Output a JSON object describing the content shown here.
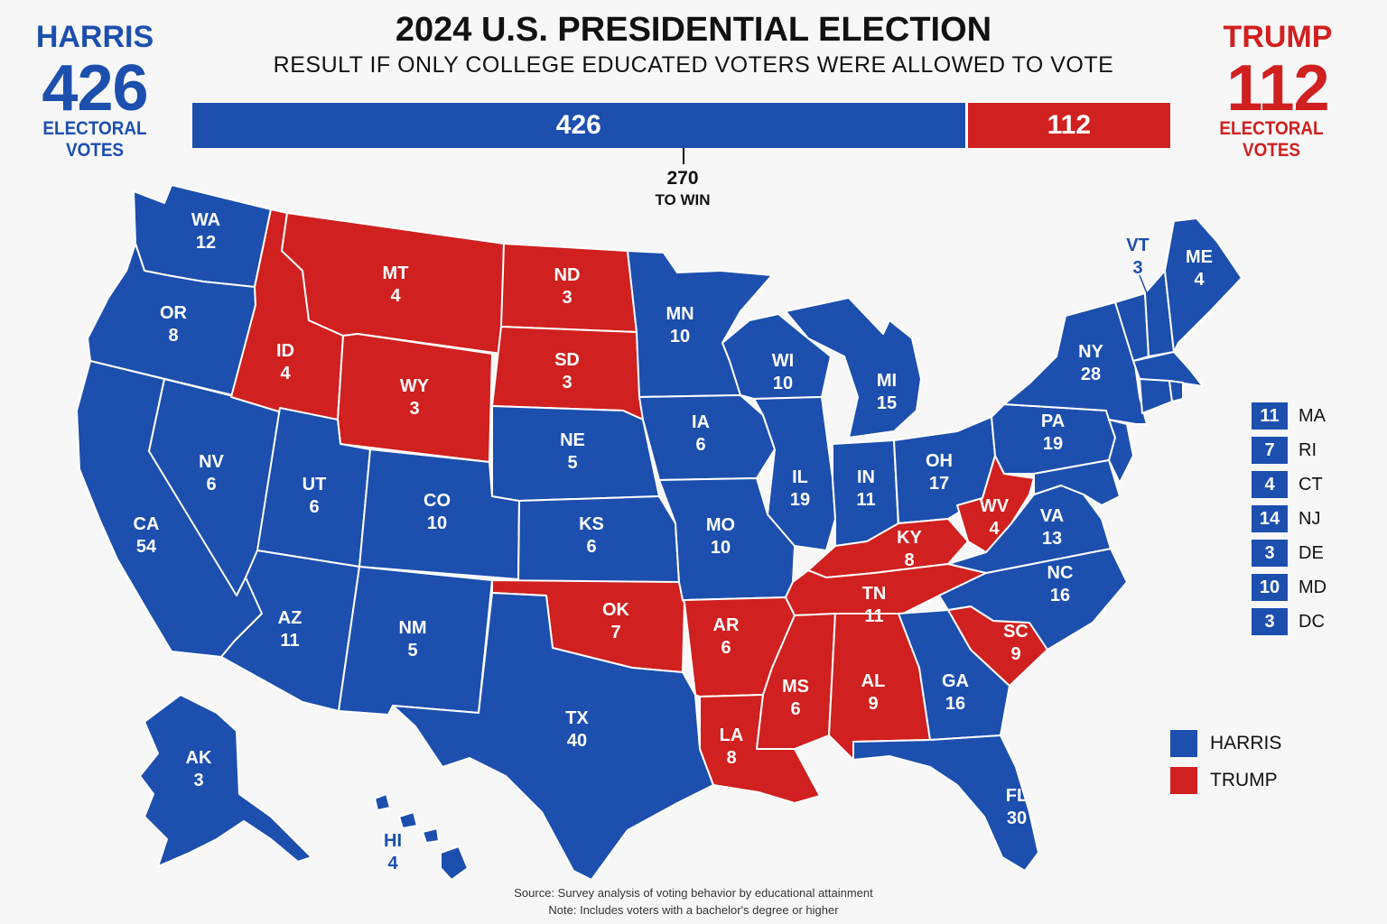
{
  "header": {
    "title": "2024 U.S. PRESIDENTIAL ELECTION",
    "subtitle": "RESULT IF ONLY COLLEGE EDUCATED VOTERS WERE ALLOWED TO VOTE"
  },
  "harris": {
    "name": "HARRIS",
    "votes": "426",
    "label": "ELECTORAL VOTES",
    "color": "#1c4fae"
  },
  "trump": {
    "name": "TRUMP",
    "votes": "112",
    "label": "ELECTORAL VOTES",
    "color": "#d0201f"
  },
  "bar": {
    "harris": "426",
    "trump": "112",
    "threshold": "270",
    "threshold_label": "TO WIN"
  },
  "states": {
    "WA": {
      "code": "WA",
      "ev": "12",
      "winner": "harris"
    },
    "OR": {
      "code": "OR",
      "ev": "8",
      "winner": "harris"
    },
    "CA": {
      "code": "CA",
      "ev": "54",
      "winner": "harris"
    },
    "NV": {
      "code": "NV",
      "ev": "6",
      "winner": "harris"
    },
    "ID": {
      "code": "ID",
      "ev": "4",
      "winner": "trump"
    },
    "MT": {
      "code": "MT",
      "ev": "4",
      "winner": "trump"
    },
    "WY": {
      "code": "WY",
      "ev": "3",
      "winner": "trump"
    },
    "UT": {
      "code": "UT",
      "ev": "6",
      "winner": "harris"
    },
    "AZ": {
      "code": "AZ",
      "ev": "11",
      "winner": "harris"
    },
    "CO": {
      "code": "CO",
      "ev": "10",
      "winner": "harris"
    },
    "NM": {
      "code": "NM",
      "ev": "5",
      "winner": "harris"
    },
    "ND": {
      "code": "ND",
      "ev": "3",
      "winner": "trump"
    },
    "SD": {
      "code": "SD",
      "ev": "3",
      "winner": "trump"
    },
    "NE": {
      "code": "NE",
      "ev": "5",
      "winner": "harris"
    },
    "KS": {
      "code": "KS",
      "ev": "6",
      "winner": "harris"
    },
    "OK": {
      "code": "OK",
      "ev": "7",
      "winner": "trump"
    },
    "TX": {
      "code": "TX",
      "ev": "40",
      "winner": "harris"
    },
    "MN": {
      "code": "MN",
      "ev": "10",
      "winner": "harris"
    },
    "IA": {
      "code": "IA",
      "ev": "6",
      "winner": "harris"
    },
    "MO": {
      "code": "MO",
      "ev": "10",
      "winner": "harris"
    },
    "AR": {
      "code": "AR",
      "ev": "6",
      "winner": "trump"
    },
    "LA": {
      "code": "LA",
      "ev": "8",
      "winner": "trump"
    },
    "WI": {
      "code": "WI",
      "ev": "10",
      "winner": "harris"
    },
    "IL": {
      "code": "IL",
      "ev": "19",
      "winner": "harris"
    },
    "MI": {
      "code": "MI",
      "ev": "15",
      "winner": "harris"
    },
    "IN": {
      "code": "IN",
      "ev": "11",
      "winner": "harris"
    },
    "OH": {
      "code": "OH",
      "ev": "17",
      "winner": "harris"
    },
    "KY": {
      "code": "KY",
      "ev": "8",
      "winner": "trump"
    },
    "TN": {
      "code": "TN",
      "ev": "11",
      "winner": "trump"
    },
    "MS": {
      "code": "MS",
      "ev": "6",
      "winner": "trump"
    },
    "AL": {
      "code": "AL",
      "ev": "9",
      "winner": "trump"
    },
    "GA": {
      "code": "GA",
      "ev": "16",
      "winner": "harris"
    },
    "FL": {
      "code": "FL",
      "ev": "30",
      "winner": "harris"
    },
    "SC": {
      "code": "SC",
      "ev": "9",
      "winner": "trump"
    },
    "NC": {
      "code": "NC",
      "ev": "16",
      "winner": "harris"
    },
    "VA": {
      "code": "VA",
      "ev": "13",
      "winner": "harris"
    },
    "WV": {
      "code": "WV",
      "ev": "4",
      "winner": "trump"
    },
    "PA": {
      "code": "PA",
      "ev": "19",
      "winner": "harris"
    },
    "NY": {
      "code": "NY",
      "ev": "28",
      "winner": "harris"
    },
    "VT": {
      "code": "VT",
      "ev": "3",
      "winner": "harris"
    },
    "ME": {
      "code": "ME",
      "ev": "4",
      "winner": "harris"
    },
    "AK": {
      "code": "AK",
      "ev": "3",
      "winner": "harris"
    },
    "HI": {
      "code": "HI",
      "ev": "4",
      "winner": "harris"
    }
  },
  "small_states": [
    {
      "code": "MA",
      "ev": "11"
    },
    {
      "code": "RI",
      "ev": "7"
    },
    {
      "code": "CT",
      "ev": "4"
    },
    {
      "code": "NJ",
      "ev": "14"
    },
    {
      "code": "DE",
      "ev": "3"
    },
    {
      "code": "MD",
      "ev": "10"
    },
    {
      "code": "DC",
      "ev": "3"
    }
  ],
  "legend": [
    {
      "label": "HARRIS",
      "color": "#1c4fae"
    },
    {
      "label": "TRUMP",
      "color": "#d0201f"
    }
  ],
  "footer": {
    "source": "Source:  Survey  analysis  of  voting behavior  by educational attainment",
    "note": "Note: Includes voters with a bachelor's degree or higher"
  }
}
